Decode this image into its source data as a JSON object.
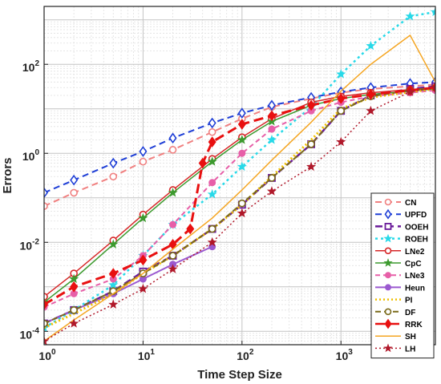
{
  "chart_data": {
    "type": "line",
    "xlabel": "Time Step Size",
    "ylabel": "Errors",
    "xscale": "log",
    "yscale": "log",
    "xlim": [
      1,
      9000
    ],
    "ylim": [
      5e-05,
      2000
    ],
    "grid": true,
    "minor_grid": true,
    "legend_position": "bottom-right",
    "x_ticks": [
      {
        "value": 1,
        "base": "10",
        "exp": "0"
      },
      {
        "value": 10,
        "base": "10",
        "exp": "1"
      },
      {
        "value": 100,
        "base": "10",
        "exp": "2"
      },
      {
        "value": 1000,
        "base": "10",
        "exp": "3"
      }
    ],
    "y_ticks": [
      {
        "value": 0.0001,
        "base": "10",
        "exp": "-4"
      },
      {
        "value": 0.01,
        "base": "10",
        "exp": "-2"
      },
      {
        "value": 1,
        "base": "10",
        "exp": "0"
      },
      {
        "value": 100,
        "base": "10",
        "exp": "2"
      }
    ],
    "series": [
      {
        "name": "CN",
        "color": "#f08080",
        "dash": "8,5",
        "width": 2,
        "marker": "circle-open",
        "points": [
          [
            1,
            0.065
          ],
          [
            2,
            0.13
          ],
          [
            5,
            0.3
          ],
          [
            10,
            0.65
          ],
          [
            20,
            1.2
          ],
          [
            50,
            3.0
          ],
          [
            100,
            6
          ],
          [
            200,
            11
          ],
          [
            500,
            17
          ],
          [
            1000,
            23
          ],
          [
            2000,
            28
          ],
          [
            5000,
            32
          ],
          [
            9000,
            35
          ]
        ]
      },
      {
        "name": "UPFD",
        "color": "#1f3fd6",
        "dash": "8,5",
        "width": 2,
        "marker": "diamond-open",
        "points": [
          [
            1,
            0.13
          ],
          [
            2,
            0.25
          ],
          [
            5,
            0.6
          ],
          [
            10,
            1.1
          ],
          [
            20,
            2.2
          ],
          [
            50,
            4.8
          ],
          [
            100,
            8
          ],
          [
            200,
            12
          ],
          [
            500,
            18
          ],
          [
            1000,
            24
          ],
          [
            2000,
            30
          ],
          [
            5000,
            37
          ],
          [
            9000,
            40
          ]
        ]
      },
      {
        "name": "OOEH",
        "color": "#6a1b9a",
        "dash": "9,5",
        "width": 2.5,
        "marker": "square-open",
        "points": [
          [
            1,
            0.00015
          ],
          [
            2,
            0.0003
          ],
          [
            5,
            0.0008
          ],
          [
            10,
            0.0022
          ],
          [
            20,
            0.005
          ],
          [
            50,
            0.02
          ],
          [
            100,
            0.07
          ],
          [
            200,
            0.28
          ],
          [
            500,
            1.6
          ],
          [
            1000,
            9
          ],
          [
            2000,
            20
          ],
          [
            5000,
            28
          ],
          [
            9000,
            32
          ]
        ]
      },
      {
        "name": "ROEH",
        "color": "#28d9e8",
        "dash": "3,4",
        "width": 2.5,
        "marker": "star",
        "points": [
          [
            1,
            0.00012
          ],
          [
            2,
            0.0003
          ],
          [
            5,
            0.0011
          ],
          [
            10,
            0.005
          ],
          [
            20,
            0.025
          ],
          [
            50,
            0.12
          ],
          [
            100,
            0.5
          ],
          [
            200,
            2.0
          ],
          [
            500,
            11
          ],
          [
            1000,
            60
          ],
          [
            2000,
            260
          ],
          [
            5000,
            1200
          ],
          [
            9000,
            1500
          ]
        ]
      },
      {
        "name": "LNe2",
        "color": "#d62728",
        "dash": "",
        "width": 1.5,
        "marker": "circle-open",
        "points": [
          [
            1,
            0.0006
          ],
          [
            2,
            0.002
          ],
          [
            5,
            0.011
          ],
          [
            10,
            0.042
          ],
          [
            20,
            0.15
          ],
          [
            50,
            0.75
          ],
          [
            100,
            2.3
          ],
          [
            200,
            6
          ],
          [
            500,
            14
          ],
          [
            1000,
            19
          ],
          [
            2000,
            23
          ],
          [
            5000,
            27
          ],
          [
            9000,
            30
          ]
        ]
      },
      {
        "name": "CpC",
        "color": "#3c9a2e",
        "dash": "",
        "width": 1.5,
        "marker": "star",
        "points": [
          [
            1,
            0.00045
          ],
          [
            2,
            0.0015
          ],
          [
            5,
            0.009
          ],
          [
            10,
            0.035
          ],
          [
            20,
            0.13
          ],
          [
            50,
            0.65
          ],
          [
            100,
            2.0
          ],
          [
            200,
            5.2
          ],
          [
            500,
            12
          ],
          [
            1000,
            17
          ],
          [
            2000,
            21
          ],
          [
            5000,
            25
          ],
          [
            9000,
            28
          ]
        ]
      },
      {
        "name": "LNe3",
        "color": "#e75fa8",
        "dash": "6,4",
        "width": 2,
        "marker": "circle-filled",
        "points": [
          [
            1,
            0.00035
          ],
          [
            2,
            0.0007
          ],
          [
            5,
            0.0015
          ],
          [
            10,
            0.005
          ],
          [
            20,
            0.025
          ],
          [
            50,
            0.22
          ],
          [
            100,
            1.0
          ],
          [
            200,
            3.5
          ],
          [
            500,
            9
          ],
          [
            1000,
            14
          ],
          [
            2000,
            19
          ],
          [
            5000,
            23
          ],
          [
            9000,
            26
          ]
        ]
      },
      {
        "name": "Heun",
        "color": "#9b59d0",
        "dash": "",
        "width": 2,
        "marker": "circle-filled",
        "points": [
          [
            1,
            0.00015
          ],
          [
            2,
            0.0003
          ],
          [
            5,
            0.0007
          ],
          [
            10,
            0.0015
          ],
          [
            20,
            0.0032
          ],
          [
            50,
            0.008
          ]
        ]
      },
      {
        "name": "PI",
        "color": "#f0c000",
        "dash": "2,3",
        "width": 3,
        "marker": "none",
        "points": [
          [
            1,
            0.00012
          ],
          [
            2,
            0.00025
          ],
          [
            5,
            0.0007
          ],
          [
            10,
            0.002
          ],
          [
            20,
            0.005
          ],
          [
            50,
            0.02
          ],
          [
            100,
            0.07
          ],
          [
            200,
            0.3
          ],
          [
            500,
            2
          ],
          [
            1000,
            10
          ],
          [
            2000,
            18
          ],
          [
            5000,
            24
          ],
          [
            9000,
            28
          ]
        ]
      },
      {
        "name": "DF",
        "color": "#7a6a1a",
        "dash": "7,4",
        "width": 2,
        "marker": "circle-open",
        "points": [
          [
            1,
            0.00015
          ],
          [
            2,
            0.0003
          ],
          [
            5,
            0.0008
          ],
          [
            10,
            0.002
          ],
          [
            20,
            0.005
          ],
          [
            50,
            0.02
          ],
          [
            100,
            0.075
          ],
          [
            200,
            0.28
          ],
          [
            500,
            1.6
          ],
          [
            1000,
            9
          ],
          [
            2000,
            19
          ],
          [
            5000,
            26
          ],
          [
            9000,
            30
          ]
        ]
      },
      {
        "name": "RRK",
        "color": "#e81010",
        "dash": "12,6",
        "width": 3,
        "marker": "diamond-filled",
        "points": [
          [
            1,
            0.0004
          ],
          [
            2,
            0.001
          ],
          [
            5,
            0.002
          ],
          [
            10,
            0.004
          ],
          [
            20,
            0.009
          ],
          [
            30,
            0.02
          ],
          [
            40,
            0.6
          ],
          [
            50,
            1.8
          ],
          [
            100,
            4.5
          ],
          [
            200,
            7
          ],
          [
            500,
            12
          ],
          [
            1000,
            17
          ],
          [
            2000,
            21
          ],
          [
            5000,
            26
          ],
          [
            9000,
            30
          ]
        ]
      },
      {
        "name": "SH",
        "color": "#f5a623",
        "dash": "",
        "width": 1.5,
        "marker": "none",
        "points": [
          [
            1,
            6e-05
          ],
          [
            2,
            0.00018
          ],
          [
            5,
            0.0007
          ],
          [
            10,
            0.002
          ],
          [
            20,
            0.007
          ],
          [
            50,
            0.035
          ],
          [
            100,
            0.15
          ],
          [
            200,
            0.7
          ],
          [
            500,
            5
          ],
          [
            1000,
            25
          ],
          [
            2000,
            100
          ],
          [
            5000,
            450
          ],
          [
            9000,
            40
          ]
        ]
      },
      {
        "name": "LH",
        "color": "#b0182a",
        "dash": "2,3",
        "width": 1.5,
        "marker": "star",
        "points": [
          [
            1,
            6e-05
          ],
          [
            2,
            0.00015
          ],
          [
            5,
            0.0004
          ],
          [
            10,
            0.0009
          ],
          [
            20,
            0.0025
          ],
          [
            50,
            0.01
          ],
          [
            100,
            0.045
          ],
          [
            200,
            0.14
          ],
          [
            500,
            0.5
          ],
          [
            1000,
            1.8
          ],
          [
            2000,
            9
          ],
          [
            5000,
            24
          ],
          [
            9000,
            30
          ]
        ]
      }
    ]
  }
}
